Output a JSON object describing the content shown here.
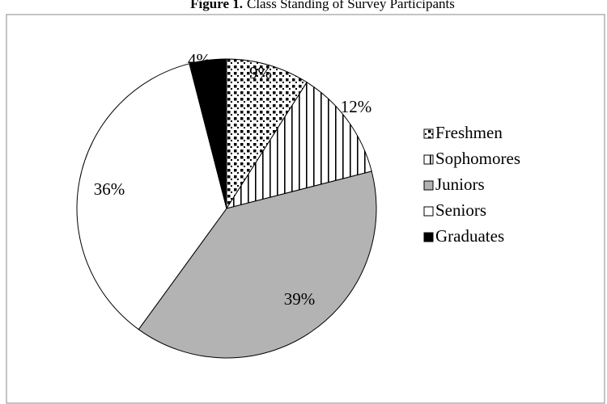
{
  "chart_data": {
    "type": "pie",
    "title_prefix": "Figure 1.",
    "title": "Class Standing of Survey Participants",
    "categories": [
      "Freshmen",
      "Sophomores",
      "Juniors",
      "Seniors",
      "Graduates"
    ],
    "values": [
      9,
      12,
      39,
      36,
      4
    ],
    "value_labels": [
      "9%",
      "12%",
      "39%",
      "36%",
      "4%"
    ],
    "colors": [
      "pattern-dots",
      "pattern-stripes",
      "#b3b3b3",
      "#ffffff",
      "#000000"
    ],
    "legend": "right"
  }
}
